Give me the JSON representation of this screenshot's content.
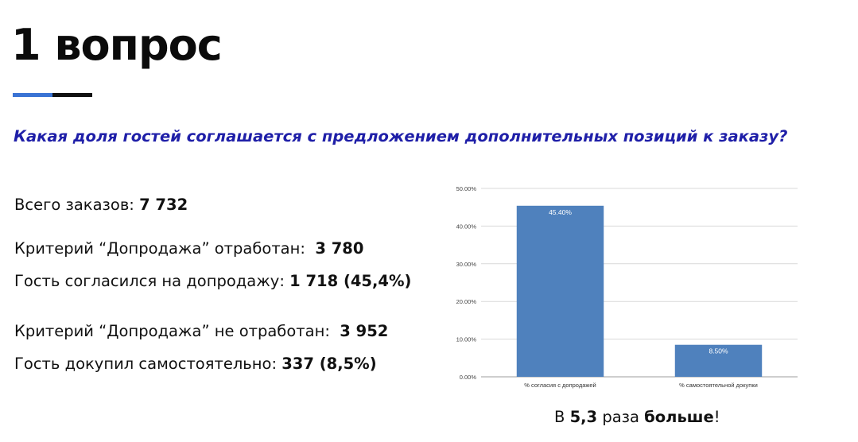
{
  "slide": {
    "title": "1 вопрос",
    "question": "Какая доля гостей соглашается с предложением дополнительных позиций к заказу?"
  },
  "stats": {
    "total_label": "Всего заказов: ",
    "total_value": "7 732",
    "worked_label": "Критерий “Допродажа” отработан:  ",
    "worked_value": "3 780",
    "agreed_label": "Гость согласился на допродажу: ",
    "agreed_value": "1 718 (45,4%)",
    "not_worked_label": "Критерий “Допродажа” не отработан:  ",
    "not_worked_value": "3 952",
    "self_label": "Гость докупил самостоятельно: ",
    "self_value": "337 (8,5%)"
  },
  "summary": {
    "prefix": "В ",
    "factor": "5,3",
    "middle": " раза ",
    "emphasis": "больше",
    "suffix": "!"
  },
  "colors": {
    "bar": "#4f81bd",
    "grid": "#d9d9d9",
    "question": "#1f1fa8",
    "accent_blue": "#3a73d4"
  },
  "chart_data": {
    "type": "bar",
    "categories": [
      "% согласия с допродажей",
      "% самостоятельной докупки"
    ],
    "values": [
      45.4,
      8.5
    ],
    "value_labels": [
      "45.40%",
      "8.50%"
    ],
    "yticks": [
      "0.00%",
      "10.00%",
      "20.00%",
      "30.00%",
      "40.00%",
      "50.00%"
    ],
    "ylim": [
      0,
      50
    ],
    "grid": true
  }
}
